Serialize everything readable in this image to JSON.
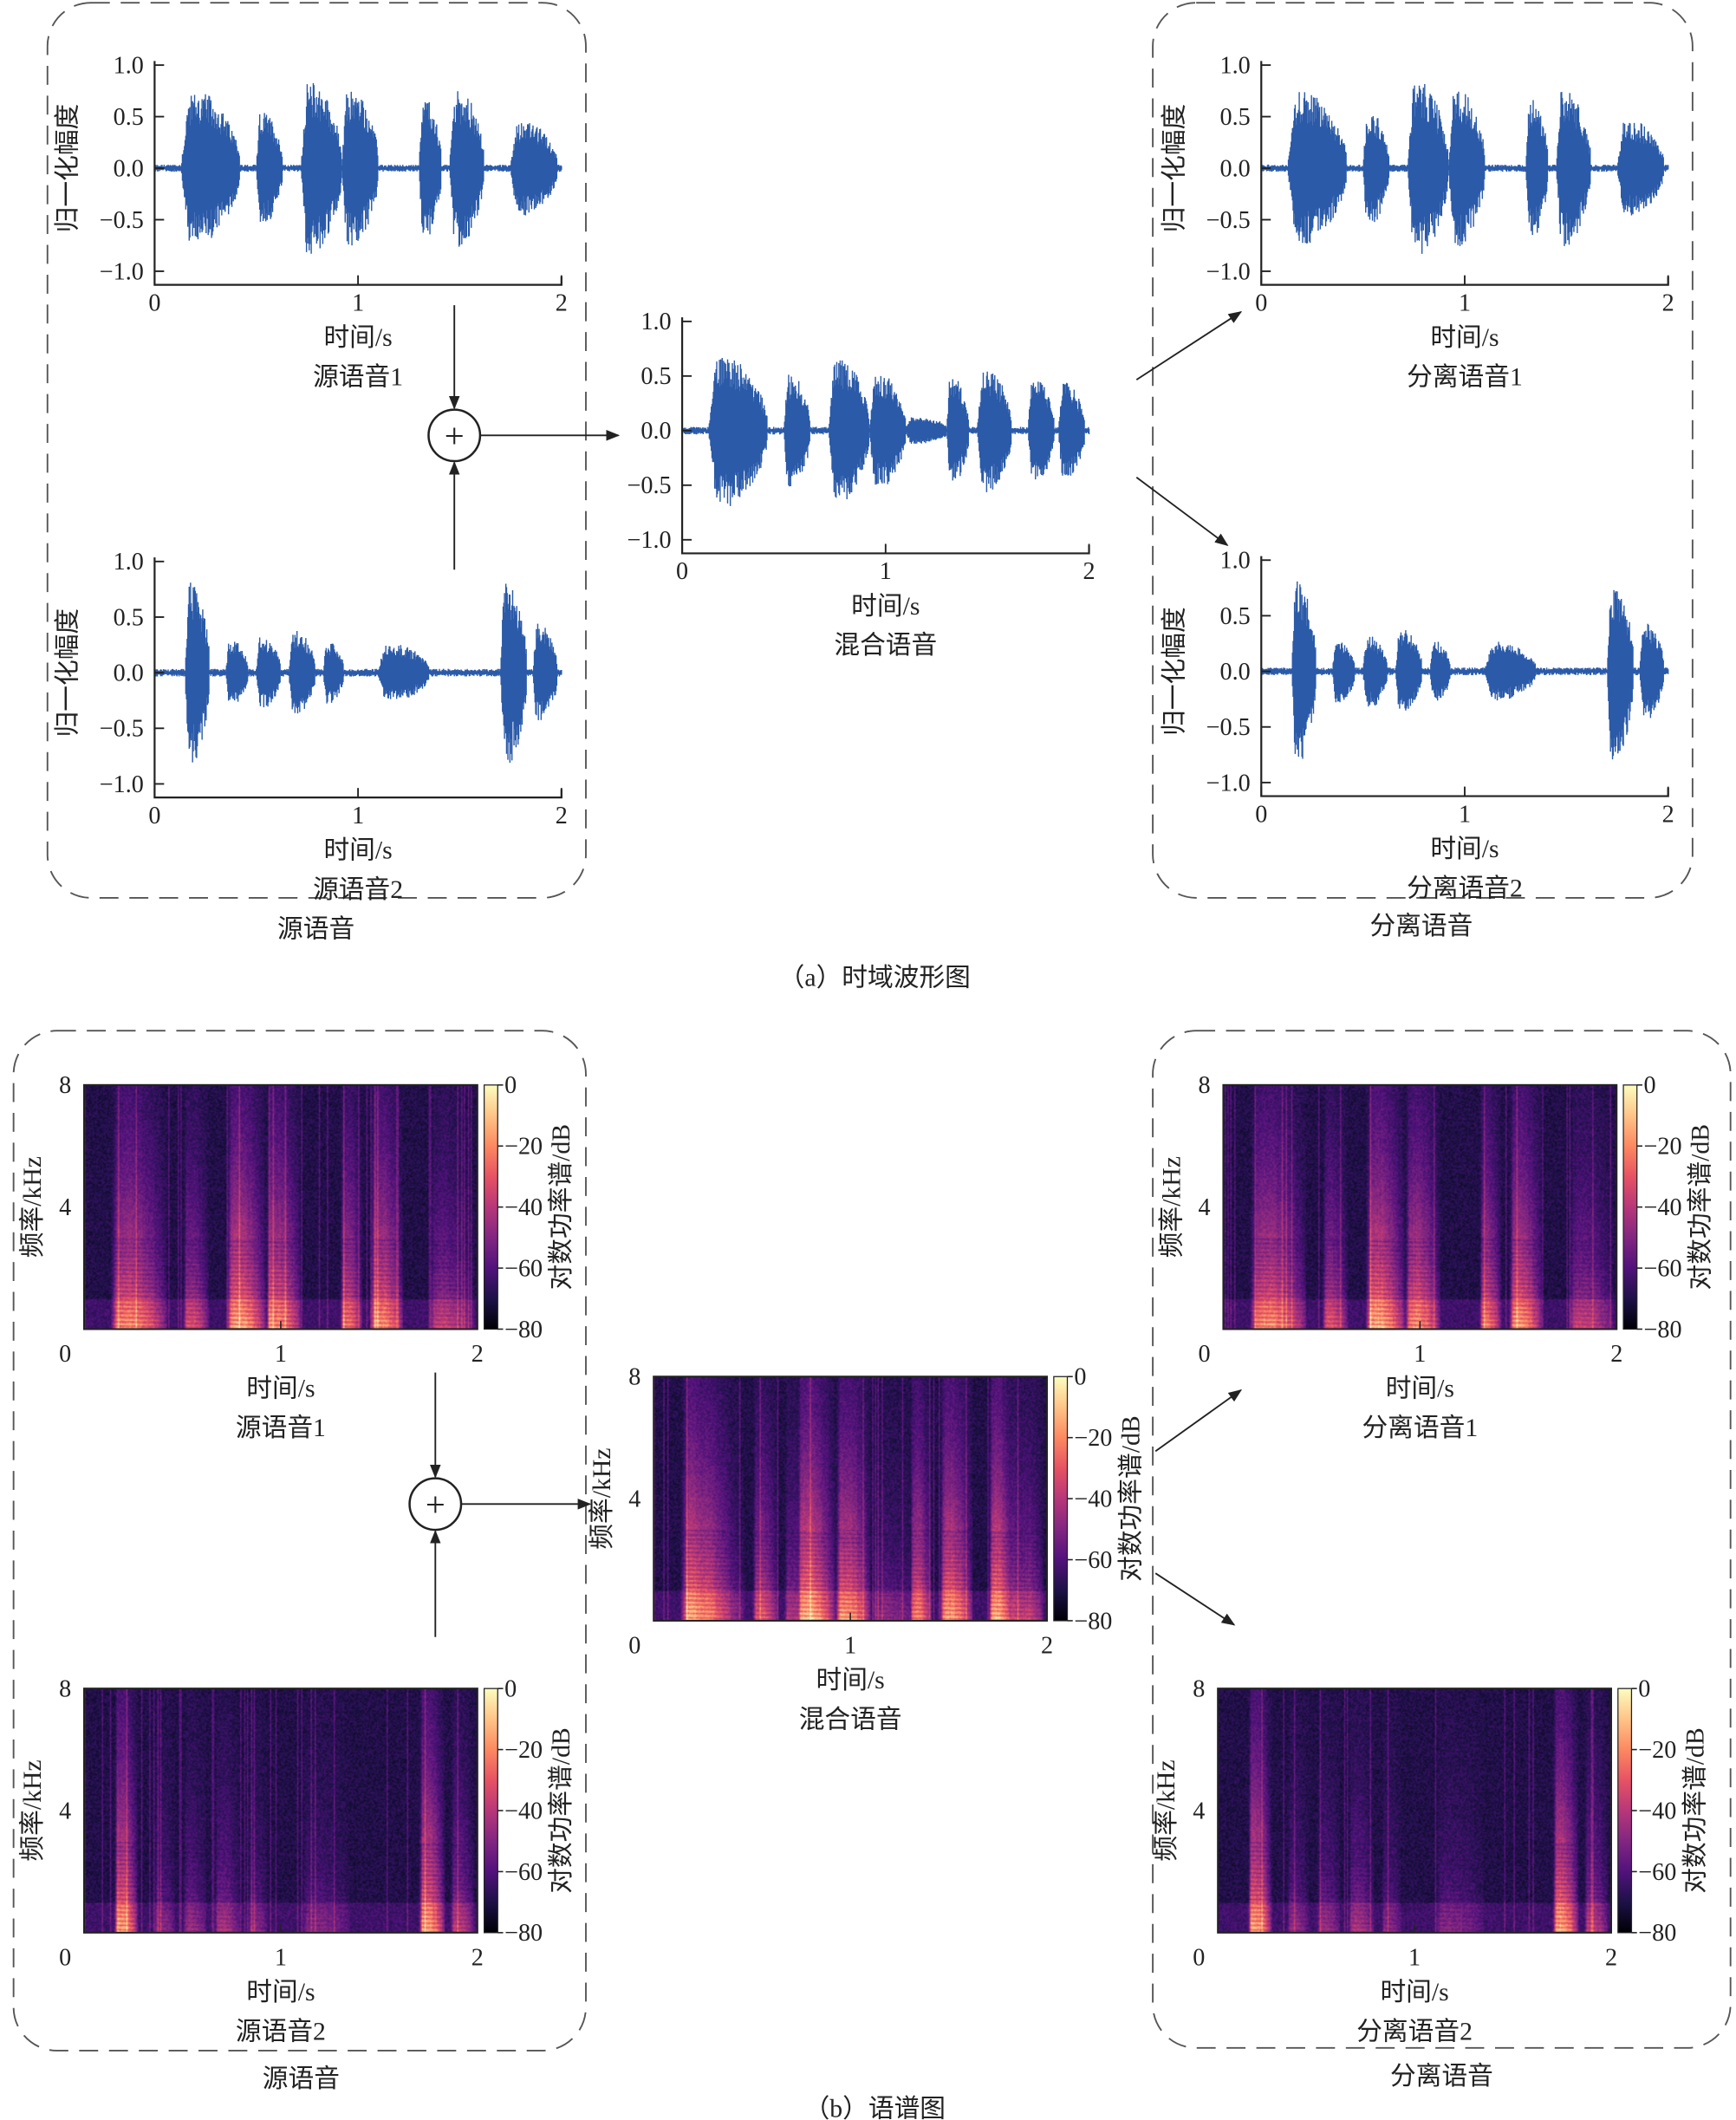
{
  "figure": {
    "caption_a": "（a）时域波形图",
    "caption_b": "（b）语谱图",
    "group_source": "源语音",
    "group_separated": "分离语音",
    "sum_symbol": "+"
  },
  "colors": {
    "waveform": "#2a5aa8",
    "colormap": [
      "#000004",
      "#1d1147",
      "#51127c",
      "#822681",
      "#b73779",
      "#e75263",
      "#fc8961",
      "#fec488",
      "#fcfdbf"
    ]
  },
  "chart_data": [
    {
      "id": "wave-src1",
      "type": "area",
      "title": "源语音1",
      "xlabel": "时间/s",
      "ylabel": "归一化幅度",
      "xlim": [
        0,
        2
      ],
      "ylim": [
        -1,
        1
      ],
      "xticks": [
        "0",
        "1",
        "2"
      ],
      "yticks": [
        "1.0",
        "0.5",
        "0.0",
        "−0.5",
        "−1.0"
      ],
      "bursts": [
        [
          0.13,
          0.42,
          0.85
        ],
        [
          0.5,
          0.63,
          0.62
        ],
        [
          0.72,
          0.92,
          0.97
        ],
        [
          0.92,
          1.1,
          0.88
        ],
        [
          1.3,
          1.41,
          0.78
        ],
        [
          1.45,
          1.62,
          0.88
        ],
        [
          1.75,
          1.98,
          0.52
        ]
      ]
    },
    {
      "id": "wave-src2",
      "type": "area",
      "title": "源语音2",
      "xlabel": "时间/s",
      "ylabel": "归一化幅度",
      "xlim": [
        0,
        2
      ],
      "ylim": [
        -1,
        1
      ],
      "xticks": [
        "0",
        "1",
        "2"
      ],
      "yticks": [
        "1.0",
        "0.5",
        "0.0",
        "−0.5",
        "−1.0"
      ],
      "bursts": [
        [
          0.15,
          0.27,
          0.95
        ],
        [
          0.35,
          0.46,
          0.32
        ],
        [
          0.5,
          0.62,
          0.36
        ],
        [
          0.66,
          0.79,
          0.42
        ],
        [
          0.83,
          0.93,
          0.3
        ],
        [
          1.1,
          1.35,
          0.28
        ],
        [
          1.7,
          1.83,
          0.95
        ],
        [
          1.86,
          1.98,
          0.5
        ]
      ]
    },
    {
      "id": "wave-mix",
      "type": "area",
      "title": "混合语音",
      "xlabel": "时间/s",
      "ylabel": "",
      "xlim": [
        0,
        2
      ],
      "ylim": [
        -1,
        1
      ],
      "xticks": [
        "0",
        "1",
        "2"
      ],
      "yticks": [
        "1.0",
        "0.5",
        "0.0",
        "−0.5",
        "−1.0"
      ],
      "bursts": [
        [
          0.13,
          0.42,
          0.8
        ],
        [
          0.5,
          0.63,
          0.6
        ],
        [
          0.72,
          0.92,
          0.75
        ],
        [
          0.92,
          1.1,
          0.6
        ],
        [
          1.1,
          1.3,
          0.12
        ],
        [
          1.3,
          1.41,
          0.55
        ],
        [
          1.45,
          1.62,
          0.65
        ],
        [
          1.7,
          1.83,
          0.55
        ],
        [
          1.85,
          1.98,
          0.5
        ]
      ]
    },
    {
      "id": "wave-sep1",
      "type": "area",
      "title": "分离语音1",
      "xlabel": "时间/s",
      "ylabel": "归一化幅度",
      "xlim": [
        0,
        2
      ],
      "ylim": [
        -1,
        1
      ],
      "xticks": [
        "0",
        "1",
        "2"
      ],
      "yticks": [
        "1.0",
        "0.5",
        "0.0",
        "−0.5",
        "−1.0"
      ],
      "bursts": [
        [
          0.13,
          0.42,
          0.85
        ],
        [
          0.5,
          0.63,
          0.62
        ],
        [
          0.72,
          0.92,
          0.97
        ],
        [
          0.92,
          1.1,
          0.88
        ],
        [
          1.3,
          1.41,
          0.78
        ],
        [
          1.45,
          1.62,
          0.88
        ],
        [
          1.75,
          1.98,
          0.52
        ]
      ]
    },
    {
      "id": "wave-sep2",
      "type": "area",
      "title": "分离语音2",
      "xlabel": "时间/s",
      "ylabel": "归一化幅度",
      "xlim": [
        0,
        2
      ],
      "ylim": [
        -1,
        1
      ],
      "xticks": [
        "0",
        "1",
        "2"
      ],
      "yticks": [
        "1.0",
        "0.5",
        "0.0",
        "−0.5",
        "−1.0"
      ],
      "bursts": [
        [
          0.15,
          0.27,
          0.95
        ],
        [
          0.35,
          0.46,
          0.32
        ],
        [
          0.5,
          0.62,
          0.36
        ],
        [
          0.66,
          0.79,
          0.42
        ],
        [
          0.83,
          0.93,
          0.3
        ],
        [
          1.1,
          1.35,
          0.28
        ],
        [
          1.7,
          1.83,
          0.95
        ],
        [
          1.86,
          1.98,
          0.5
        ]
      ]
    },
    {
      "id": "spec-src1",
      "type": "heatmap",
      "title": "源语音1",
      "xlabel": "时间/s",
      "ylabel": "频率/kHz",
      "xlim": [
        0,
        2
      ],
      "ylim": [
        0,
        8
      ],
      "xticks": [
        "0",
        "1",
        "2"
      ],
      "yticks": [
        "8",
        "4"
      ],
      "sources": [
        "wave-src1"
      ],
      "colorbar": {
        "label": "对数功率谱/dB",
        "range": [
          -80,
          0
        ],
        "ticks": [
          "0",
          "−20",
          "−40",
          "−60",
          "−80"
        ]
      }
    },
    {
      "id": "spec-src2",
      "type": "heatmap",
      "title": "源语音2",
      "xlabel": "时间/s",
      "ylabel": "频率/kHz",
      "xlim": [
        0,
        2
      ],
      "ylim": [
        0,
        8
      ],
      "xticks": [
        "0",
        "1",
        "2"
      ],
      "yticks": [
        "8",
        "4"
      ],
      "sources": [
        "wave-src2"
      ],
      "colorbar": {
        "label": "对数功率谱/dB",
        "range": [
          -80,
          0
        ],
        "ticks": [
          "0",
          "−20",
          "−40",
          "−60",
          "−80"
        ]
      }
    },
    {
      "id": "spec-mix",
      "type": "heatmap",
      "title": "混合语音",
      "xlabel": "时间/s",
      "ylabel": "频率/kHz",
      "xlim": [
        0,
        2
      ],
      "ylim": [
        0,
        8
      ],
      "xticks": [
        "0",
        "1",
        "2"
      ],
      "yticks": [
        "8",
        "4"
      ],
      "sources": [
        "wave-src1",
        "wave-src2"
      ],
      "colorbar": {
        "label": "对数功率谱/dB",
        "range": [
          -80,
          0
        ],
        "ticks": [
          "0",
          "−20",
          "−40",
          "−60",
          "−80"
        ]
      }
    },
    {
      "id": "spec-sep1",
      "type": "heatmap",
      "title": "分离语音1",
      "xlabel": "时间/s",
      "ylabel": "频率/kHz",
      "xlim": [
        0,
        2
      ],
      "ylim": [
        0,
        8
      ],
      "xticks": [
        "0",
        "1",
        "2"
      ],
      "yticks": [
        "8",
        "4"
      ],
      "sources": [
        "wave-sep1"
      ],
      "colorbar": {
        "label": "对数功率谱/dB",
        "range": [
          -80,
          0
        ],
        "ticks": [
          "0",
          "−20",
          "−40",
          "−60",
          "−80"
        ]
      }
    },
    {
      "id": "spec-sep2",
      "type": "heatmap",
      "title": "分离语音2",
      "xlabel": "时间/s",
      "ylabel": "频率/kHz",
      "xlim": [
        0,
        2
      ],
      "ylim": [
        0,
        8
      ],
      "xticks": [
        "0",
        "1",
        "2"
      ],
      "yticks": [
        "8",
        "4"
      ],
      "sources": [
        "wave-sep2"
      ],
      "colorbar": {
        "label": "对数功率谱/dB",
        "range": [
          -80,
          0
        ],
        "ticks": [
          "0",
          "−20",
          "−40",
          "−60",
          "−80"
        ]
      }
    }
  ]
}
